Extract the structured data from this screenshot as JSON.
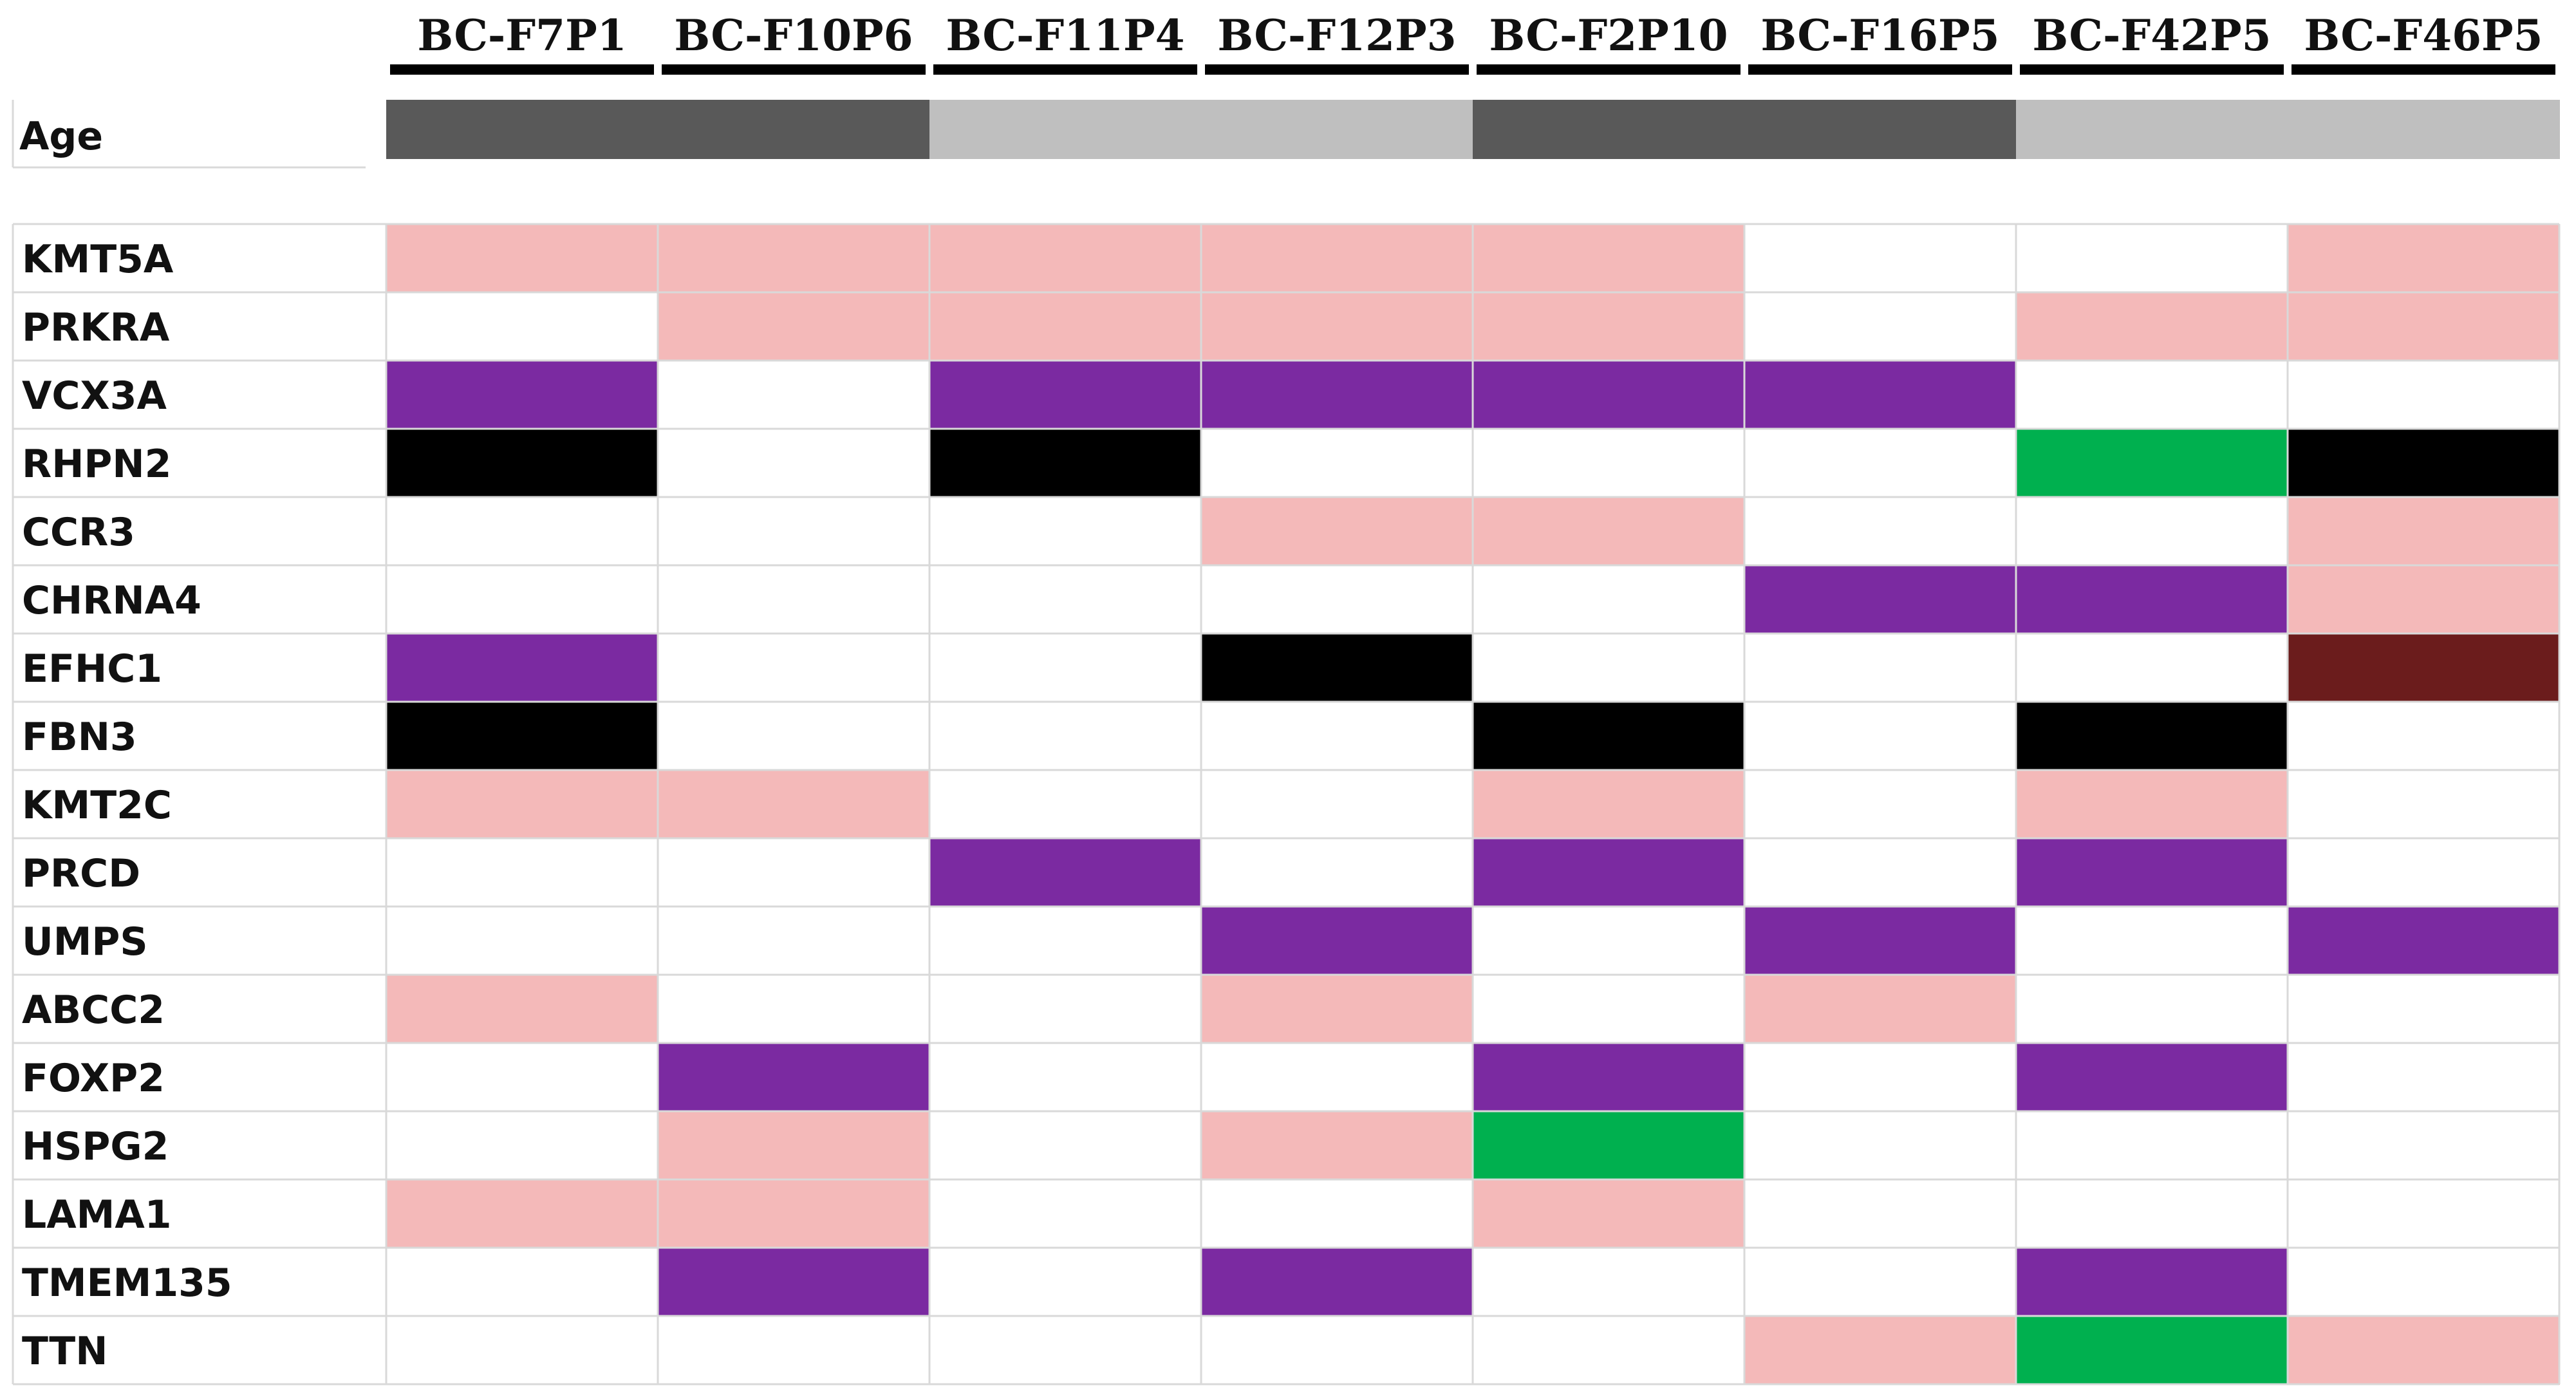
{
  "chart_data": {
    "type": "heatmap",
    "samples": [
      "BC-F7P1",
      "BC-F10P6",
      "BC-F11P4",
      "BC-F12P3",
      "BC-F2P10",
      "BC-F16P5",
      "BC-F42P5",
      "BC-F46P5"
    ],
    "age_label": "Age",
    "age_groups": [
      "dark",
      "dark",
      "light",
      "light",
      "dark",
      "dark",
      "light",
      "light"
    ],
    "genes": [
      "KMT5A",
      "PRKRA",
      "VCX3A",
      "RHPN2",
      "CCR3",
      "CHRNA4",
      "EFHC1",
      "FBN3",
      "KMT2C",
      "PRCD",
      "UMPS",
      "ABCC2",
      "FOXP2",
      "HSPG2",
      "LAMA1",
      "TMEM135",
      "TTN"
    ],
    "cells": [
      [
        "pink",
        "pink",
        "pink",
        "pink",
        "pink",
        "",
        "",
        "pink"
      ],
      [
        "",
        "pink",
        "pink",
        "pink",
        "pink",
        "",
        "pink",
        "pink"
      ],
      [
        "purple",
        "",
        "purple",
        "purple",
        "purple",
        "purple",
        "",
        ""
      ],
      [
        "black",
        "",
        "black",
        "",
        "",
        "",
        "green",
        "black"
      ],
      [
        "",
        "",
        "",
        "pink",
        "pink",
        "",
        "",
        "pink"
      ],
      [
        "",
        "",
        "",
        "",
        "",
        "purple",
        "purple",
        "pink"
      ],
      [
        "purple",
        "",
        "",
        "black",
        "",
        "",
        "",
        "maroon"
      ],
      [
        "black",
        "",
        "",
        "",
        "black",
        "",
        "black",
        ""
      ],
      [
        "pink",
        "pink",
        "",
        "",
        "pink",
        "",
        "pink",
        ""
      ],
      [
        "",
        "",
        "purple",
        "",
        "purple",
        "",
        "purple",
        ""
      ],
      [
        "",
        "",
        "",
        "purple",
        "",
        "purple",
        "",
        "purple"
      ],
      [
        "pink",
        "",
        "",
        "pink",
        "",
        "pink",
        "",
        ""
      ],
      [
        "",
        "purple",
        "",
        "",
        "purple",
        "",
        "purple",
        ""
      ],
      [
        "",
        "pink",
        "",
        "pink",
        "green",
        "",
        "",
        ""
      ],
      [
        "pink",
        "pink",
        "",
        "",
        "pink",
        "",
        "",
        ""
      ],
      [
        "",
        "purple",
        "",
        "purple",
        "",
        "",
        "purple",
        ""
      ],
      [
        "",
        "",
        "",
        "",
        "",
        "pink",
        "green",
        "pink"
      ]
    ],
    "colors": {
      "pink": "#f4b9b9",
      "purple": "#7b2aa1",
      "black": "#000000",
      "green": "#00b04f",
      "maroon": "#6b1c1c",
      "age_dark": "#595959",
      "age_light": "#bfbfbf"
    }
  }
}
